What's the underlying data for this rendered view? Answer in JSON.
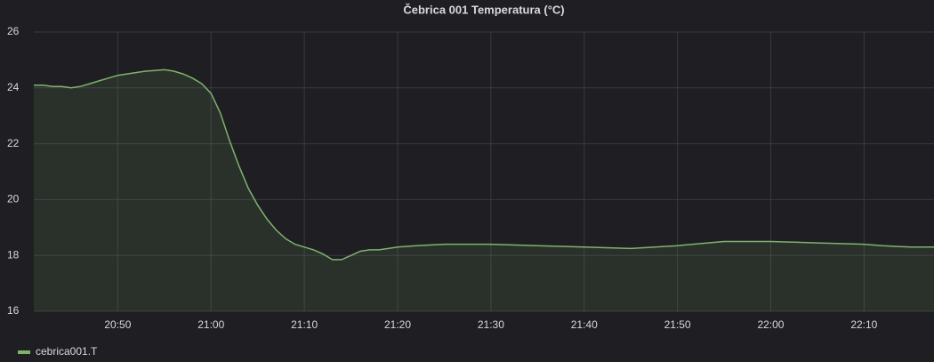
{
  "chart_data": {
    "type": "line",
    "title": "Čebrica 001 Temperatura (°C)",
    "x": [
      1241,
      1242,
      1243,
      1244,
      1245,
      1246,
      1247,
      1248,
      1249,
      1250,
      1251,
      1252,
      1253,
      1254,
      1255,
      1256,
      1257,
      1258,
      1259,
      1260,
      1261,
      1262,
      1263,
      1264,
      1265,
      1266,
      1267,
      1268,
      1269,
      1270,
      1271,
      1272,
      1273,
      1274,
      1275,
      1276,
      1277,
      1278,
      1279,
      1280,
      1282,
      1285,
      1290,
      1295,
      1300,
      1305,
      1310,
      1315,
      1320,
      1325,
      1330,
      1332,
      1335,
      1337.5
    ],
    "series": [
      {
        "name": "cebrica001.T",
        "color": "#7eb26d",
        "values": [
          24.1,
          24.1,
          24.05,
          24.05,
          24.0,
          24.05,
          24.15,
          24.25,
          24.35,
          24.45,
          24.5,
          24.55,
          24.6,
          24.62,
          24.65,
          24.6,
          24.5,
          24.35,
          24.15,
          23.8,
          23.1,
          22.1,
          21.2,
          20.4,
          19.8,
          19.3,
          18.9,
          18.6,
          18.4,
          18.3,
          18.2,
          18.05,
          17.85,
          17.85,
          18.0,
          18.15,
          18.2,
          18.2,
          18.25,
          18.3,
          18.35,
          18.4,
          18.4,
          18.35,
          18.3,
          18.25,
          18.35,
          18.5,
          18.5,
          18.45,
          18.4,
          18.35,
          18.3,
          18.3
        ]
      }
    ],
    "xlim": [
      1241,
      1337.5
    ],
    "xticks": [
      {
        "value": 1250,
        "label": "20:50"
      },
      {
        "value": 1260,
        "label": "21:00"
      },
      {
        "value": 1270,
        "label": "21:10"
      },
      {
        "value": 1280,
        "label": "21:20"
      },
      {
        "value": 1290,
        "label": "21:30"
      },
      {
        "value": 1300,
        "label": "21:40"
      },
      {
        "value": 1310,
        "label": "21:50"
      },
      {
        "value": 1320,
        "label": "22:00"
      },
      {
        "value": 1330,
        "label": "22:10"
      }
    ],
    "ylim": [
      16,
      26
    ],
    "yticks": [
      16,
      18,
      20,
      22,
      24,
      26
    ],
    "grid": true,
    "legend": "bottom-left"
  }
}
